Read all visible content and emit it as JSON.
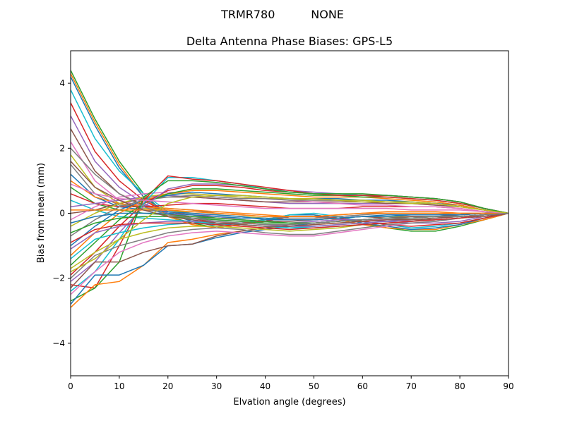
{
  "chart_data": {
    "type": "line",
    "suptitle": "TRMR780          NONE",
    "title": "Delta Antenna Phase Biases: GPS-L5",
    "xlabel": "Elvation angle (degrees)",
    "ylabel": "Bias from mean (mm)",
    "xlim": [
      0,
      90
    ],
    "ylim": [
      -5,
      5
    ],
    "xticks": [
      0,
      10,
      20,
      30,
      40,
      50,
      60,
      70,
      80,
      90
    ],
    "yticks": [
      -4,
      -2,
      0,
      2,
      4
    ],
    "grid": false,
    "x": [
      0,
      5,
      10,
      15,
      20,
      25,
      30,
      35,
      40,
      45,
      50,
      55,
      60,
      65,
      70,
      75,
      80,
      85,
      90
    ],
    "series": [
      {
        "color": "#2ca02c",
        "values": [
          4.4,
          2.9,
          1.6,
          0.6,
          -0.1,
          -0.3,
          -0.45,
          -0.35,
          -0.25,
          -0.05,
          -0.05,
          -0.15,
          -0.3,
          -0.45,
          -0.55,
          -0.55,
          -0.4,
          -0.2,
          0
        ]
      },
      {
        "color": "#ff7f0e",
        "values": [
          4.3,
          2.8,
          1.5,
          0.5,
          -0.1,
          -0.35,
          -0.45,
          -0.35,
          -0.25,
          -0.1,
          -0.1,
          -0.2,
          -0.35,
          -0.45,
          -0.5,
          -0.5,
          -0.35,
          -0.2,
          0
        ]
      },
      {
        "color": "#1f77b4",
        "values": [
          4.2,
          2.7,
          1.4,
          0.5,
          0.0,
          -0.25,
          -0.4,
          -0.3,
          -0.2,
          -0.05,
          -0.05,
          -0.15,
          -0.3,
          -0.4,
          -0.5,
          -0.45,
          -0.35,
          -0.15,
          0
        ]
      },
      {
        "color": "#17becf",
        "values": [
          3.8,
          2.3,
          1.3,
          0.6,
          0.05,
          -0.2,
          -0.35,
          -0.3,
          -0.2,
          -0.05,
          0.0,
          -0.1,
          -0.25,
          -0.35,
          -0.45,
          -0.4,
          -0.3,
          -0.15,
          0
        ]
      },
      {
        "color": "#d62728",
        "values": [
          3.4,
          1.9,
          1.0,
          0.4,
          0.0,
          -0.15,
          -0.3,
          -0.3,
          -0.25,
          -0.1,
          -0.1,
          -0.15,
          -0.25,
          -0.35,
          -0.4,
          -0.35,
          -0.3,
          -0.15,
          0
        ]
      },
      {
        "color": "#9467bd",
        "values": [
          3.0,
          1.6,
          0.8,
          0.3,
          0.0,
          -0.1,
          -0.2,
          -0.25,
          -0.3,
          -0.3,
          -0.25,
          -0.2,
          -0.2,
          -0.25,
          -0.3,
          -0.3,
          -0.25,
          -0.1,
          0
        ]
      },
      {
        "color": "#8c564b",
        "values": [
          2.6,
          1.3,
          0.6,
          0.25,
          0.05,
          -0.05,
          -0.15,
          -0.2,
          -0.25,
          -0.25,
          -0.2,
          -0.15,
          -0.1,
          -0.15,
          -0.2,
          -0.2,
          -0.15,
          -0.1,
          0
        ]
      },
      {
        "color": "#e377c2",
        "values": [
          2.2,
          1.0,
          0.4,
          0.2,
          0.05,
          0.0,
          -0.1,
          -0.2,
          -0.25,
          -0.3,
          -0.3,
          -0.25,
          -0.2,
          -0.2,
          -0.25,
          -0.2,
          -0.15,
          -0.05,
          0
        ]
      },
      {
        "color": "#bcbd22",
        "values": [
          1.8,
          0.8,
          0.3,
          0.15,
          0.1,
          0.0,
          -0.05,
          -0.1,
          -0.15,
          -0.2,
          -0.2,
          -0.15,
          -0.1,
          -0.1,
          -0.1,
          -0.1,
          -0.1,
          -0.05,
          0
        ]
      },
      {
        "color": "#7f7f7f",
        "values": [
          1.5,
          0.6,
          0.25,
          0.2,
          0.15,
          0.1,
          0.0,
          -0.05,
          -0.1,
          -0.15,
          -0.15,
          -0.1,
          -0.05,
          0.0,
          0.0,
          0.0,
          -0.05,
          0.0,
          0
        ]
      },
      {
        "color": "#1f77b4",
        "values": [
          1.2,
          0.5,
          0.2,
          0.1,
          0.05,
          0.0,
          -0.05,
          -0.1,
          -0.2,
          -0.2,
          -0.2,
          -0.15,
          -0.1,
          -0.05,
          -0.05,
          -0.05,
          -0.05,
          0.0,
          0
        ]
      },
      {
        "color": "#ff7f0e",
        "values": [
          1.0,
          0.5,
          0.3,
          0.2,
          0.15,
          0.1,
          0.05,
          0.0,
          -0.05,
          -0.1,
          -0.1,
          -0.05,
          0.0,
          0.05,
          0.05,
          0.05,
          0.0,
          0.0,
          0
        ]
      },
      {
        "color": "#2ca02c",
        "values": [
          0.8,
          0.3,
          0.1,
          0.0,
          -0.05,
          -0.1,
          -0.15,
          -0.2,
          -0.25,
          -0.3,
          -0.3,
          -0.25,
          -0.2,
          -0.15,
          -0.15,
          -0.1,
          -0.1,
          -0.05,
          0
        ]
      },
      {
        "color": "#d62728",
        "values": [
          0.6,
          0.3,
          0.2,
          0.2,
          0.25,
          0.3,
          0.3,
          0.25,
          0.2,
          0.15,
          0.15,
          0.15,
          0.2,
          0.2,
          0.2,
          0.2,
          0.15,
          0.05,
          0
        ]
      },
      {
        "color": "#17becf",
        "values": [
          0.4,
          0.1,
          -0.1,
          -0.15,
          -0.2,
          -0.25,
          -0.3,
          -0.35,
          -0.4,
          -0.45,
          -0.4,
          -0.35,
          -0.3,
          -0.25,
          -0.2,
          -0.15,
          -0.1,
          -0.05,
          0
        ]
      },
      {
        "color": "#9467bd",
        "values": [
          0.2,
          0.3,
          0.4,
          0.5,
          0.55,
          0.5,
          0.45,
          0.4,
          0.35,
          0.3,
          0.3,
          0.3,
          0.3,
          0.3,
          0.3,
          0.25,
          0.2,
          0.1,
          0
        ]
      },
      {
        "color": "#8c564b",
        "values": [
          0.0,
          0.1,
          0.3,
          0.45,
          0.5,
          0.5,
          0.45,
          0.4,
          0.35,
          0.35,
          0.35,
          0.35,
          0.35,
          0.3,
          0.3,
          0.25,
          0.2,
          0.1,
          0
        ]
      },
      {
        "color": "#e377c2",
        "values": [
          -0.2,
          0.2,
          0.5,
          0.6,
          0.65,
          0.6,
          0.55,
          0.5,
          0.45,
          0.4,
          0.35,
          0.3,
          0.25,
          0.25,
          0.2,
          0.2,
          0.15,
          0.05,
          0
        ]
      },
      {
        "color": "#bcbd22",
        "values": [
          -0.4,
          0.0,
          0.3,
          0.5,
          0.6,
          0.6,
          0.55,
          0.5,
          0.45,
          0.45,
          0.4,
          0.4,
          0.35,
          0.35,
          0.3,
          0.3,
          0.2,
          0.1,
          0
        ]
      },
      {
        "color": "#7f7f7f",
        "values": [
          -0.7,
          -0.2,
          0.2,
          0.4,
          0.5,
          0.55,
          0.5,
          0.45,
          0.45,
          0.4,
          0.4,
          0.4,
          0.4,
          0.35,
          0.35,
          0.3,
          0.25,
          0.1,
          0
        ]
      },
      {
        "color": "#1f77b4",
        "values": [
          -1.0,
          -0.4,
          0.1,
          0.4,
          0.55,
          0.65,
          0.6,
          0.55,
          0.5,
          0.45,
          0.45,
          0.45,
          0.4,
          0.4,
          0.35,
          0.3,
          0.25,
          0.1,
          0
        ]
      },
      {
        "color": "#ff7f0e",
        "values": [
          -1.3,
          -0.6,
          0.0,
          0.4,
          0.6,
          0.7,
          0.7,
          0.65,
          0.6,
          0.55,
          0.5,
          0.5,
          0.5,
          0.45,
          0.4,
          0.35,
          0.25,
          0.1,
          0
        ]
      },
      {
        "color": "#2ca02c",
        "values": [
          -1.6,
          -0.9,
          -0.2,
          0.3,
          0.6,
          0.75,
          0.75,
          0.7,
          0.65,
          0.6,
          0.55,
          0.55,
          0.5,
          0.5,
          0.45,
          0.4,
          0.3,
          0.15,
          0
        ]
      },
      {
        "color": "#d62728",
        "values": [
          -1.9,
          -1.2,
          -0.4,
          0.3,
          0.7,
          0.85,
          0.85,
          0.8,
          0.7,
          0.65,
          0.6,
          0.6,
          0.55,
          0.5,
          0.45,
          0.4,
          0.3,
          0.15,
          0
        ]
      },
      {
        "color": "#9467bd",
        "values": [
          -2.1,
          -1.5,
          -0.6,
          0.2,
          0.75,
          0.9,
          0.9,
          0.85,
          0.75,
          0.7,
          0.65,
          0.6,
          0.55,
          0.55,
          0.5,
          0.45,
          0.35,
          0.15,
          0
        ]
      },
      {
        "color": "#17becf",
        "values": [
          -2.4,
          -1.8,
          -0.8,
          0.3,
          1.1,
          1.1,
          1.0,
          0.9,
          0.75,
          0.65,
          0.6,
          0.6,
          0.55,
          0.55,
          0.5,
          0.45,
          0.35,
          0.15,
          0
        ]
      },
      {
        "color": "#d62728",
        "values": [
          -2.2,
          -2.3,
          -1.0,
          0.4,
          1.15,
          1.05,
          1.0,
          0.9,
          0.8,
          0.7,
          0.6,
          0.55,
          0.55,
          0.55,
          0.5,
          0.45,
          0.35,
          0.15,
          0
        ]
      },
      {
        "color": "#2ca02c",
        "values": [
          -2.7,
          -2.3,
          -1.5,
          0.5,
          1.0,
          1.0,
          0.95,
          0.85,
          0.75,
          0.65,
          0.6,
          0.6,
          0.6,
          0.55,
          0.5,
          0.45,
          0.35,
          0.15,
          0
        ]
      },
      {
        "color": "#ff7f0e",
        "values": [
          -2.9,
          -2.2,
          -2.1,
          -1.6,
          -0.9,
          -0.8,
          -0.65,
          -0.55,
          -0.45,
          -0.4,
          -0.35,
          -0.3,
          -0.25,
          -0.2,
          -0.2,
          -0.15,
          -0.1,
          -0.05,
          0
        ]
      },
      {
        "color": "#1f77b4",
        "values": [
          -2.8,
          -1.9,
          -1.9,
          -1.6,
          -1.0,
          -0.95,
          -0.75,
          -0.6,
          -0.5,
          -0.4,
          -0.3,
          -0.25,
          -0.2,
          -0.15,
          -0.1,
          -0.1,
          -0.05,
          0.0,
          0
        ]
      },
      {
        "color": "#8c564b",
        "values": [
          -2.3,
          -1.5,
          -1.5,
          -1.2,
          -1.0,
          -0.95,
          -0.7,
          -0.55,
          -0.45,
          -0.35,
          -0.3,
          -0.25,
          -0.2,
          -0.15,
          -0.1,
          -0.1,
          -0.05,
          0.0,
          0
        ]
      },
      {
        "color": "#e377c2",
        "values": [
          -2.5,
          -1.8,
          -1.2,
          -0.9,
          -0.7,
          -0.6,
          -0.55,
          -0.6,
          -0.65,
          -0.7,
          -0.7,
          -0.6,
          -0.5,
          -0.4,
          -0.3,
          -0.25,
          -0.15,
          -0.05,
          0
        ]
      },
      {
        "color": "#7f7f7f",
        "values": [
          -2.0,
          -1.3,
          -1.0,
          -0.8,
          -0.6,
          -0.5,
          -0.45,
          -0.5,
          -0.6,
          -0.65,
          -0.65,
          -0.55,
          -0.45,
          -0.35,
          -0.3,
          -0.25,
          -0.15,
          -0.05,
          0
        ]
      },
      {
        "color": "#bcbd22",
        "values": [
          -1.7,
          -1.2,
          -0.8,
          -0.6,
          -0.45,
          -0.4,
          -0.4,
          -0.45,
          -0.5,
          -0.55,
          -0.5,
          -0.45,
          -0.35,
          -0.3,
          -0.25,
          -0.2,
          -0.15,
          -0.05,
          0
        ]
      },
      {
        "color": "#17becf",
        "values": [
          -1.4,
          -0.8,
          -0.6,
          -0.45,
          -0.35,
          -0.3,
          -0.3,
          -0.35,
          -0.4,
          -0.45,
          -0.45,
          -0.4,
          -0.35,
          -0.3,
          -0.25,
          -0.2,
          -0.15,
          -0.05,
          0
        ]
      },
      {
        "color": "#9467bd",
        "values": [
          -1.1,
          -0.6,
          -0.4,
          -0.3,
          -0.25,
          -0.25,
          -0.25,
          -0.3,
          -0.35,
          -0.4,
          -0.4,
          -0.35,
          -0.3,
          -0.25,
          -0.2,
          -0.15,
          -0.1,
          -0.05,
          0
        ]
      },
      {
        "color": "#d62728",
        "values": [
          -0.9,
          -0.5,
          -0.35,
          -0.3,
          -0.3,
          -0.3,
          -0.35,
          -0.4,
          -0.45,
          -0.5,
          -0.45,
          -0.4,
          -0.35,
          -0.3,
          -0.25,
          -0.2,
          -0.15,
          -0.05,
          0
        ]
      },
      {
        "color": "#2ca02c",
        "values": [
          -0.6,
          -0.3,
          -0.15,
          -0.1,
          -0.1,
          -0.15,
          -0.2,
          -0.25,
          -0.3,
          -0.3,
          -0.3,
          -0.25,
          -0.2,
          -0.15,
          -0.15,
          -0.1,
          -0.1,
          -0.05,
          0
        ]
      },
      {
        "color": "#1f77b4",
        "values": [
          -0.3,
          -0.1,
          0.0,
          0.0,
          0.0,
          -0.05,
          -0.1,
          -0.15,
          -0.15,
          -0.2,
          -0.2,
          -0.15,
          -0.1,
          -0.1,
          -0.05,
          -0.05,
          -0.05,
          0.0,
          0
        ]
      },
      {
        "color": "#ff7f0e",
        "values": [
          0.1,
          0.1,
          0.1,
          0.1,
          0.1,
          0.05,
          0.0,
          -0.05,
          -0.1,
          -0.1,
          -0.1,
          -0.05,
          0.0,
          0.0,
          0.0,
          0.0,
          0.0,
          0.0,
          0
        ]
      },
      {
        "color": "#8c564b",
        "values": [
          1.6,
          0.8,
          0.4,
          0.1,
          -0.1,
          -0.2,
          -0.3,
          -0.35,
          -0.4,
          -0.4,
          -0.35,
          -0.3,
          -0.25,
          -0.2,
          -0.2,
          -0.15,
          -0.1,
          -0.05,
          0
        ]
      },
      {
        "color": "#e377c2",
        "values": [
          0.9,
          0.6,
          0.45,
          0.4,
          0.35,
          0.3,
          0.25,
          0.2,
          0.15,
          0.15,
          0.15,
          0.15,
          0.15,
          0.15,
          0.1,
          0.1,
          0.1,
          0.05,
          0
        ]
      },
      {
        "color": "#bcbd22",
        "values": [
          -1.8,
          -1.4,
          -0.8,
          -0.2,
          0.3,
          0.5,
          0.55,
          0.55,
          0.5,
          0.45,
          0.45,
          0.4,
          0.4,
          0.35,
          0.35,
          0.3,
          0.2,
          0.1,
          0
        ]
      },
      {
        "color": "#7f7f7f",
        "values": [
          2.0,
          1.2,
          0.6,
          0.2,
          -0.05,
          -0.15,
          -0.25,
          -0.3,
          -0.35,
          -0.35,
          -0.3,
          -0.25,
          -0.2,
          -0.15,
          -0.15,
          -0.1,
          -0.1,
          -0.05,
          0
        ]
      }
    ]
  }
}
